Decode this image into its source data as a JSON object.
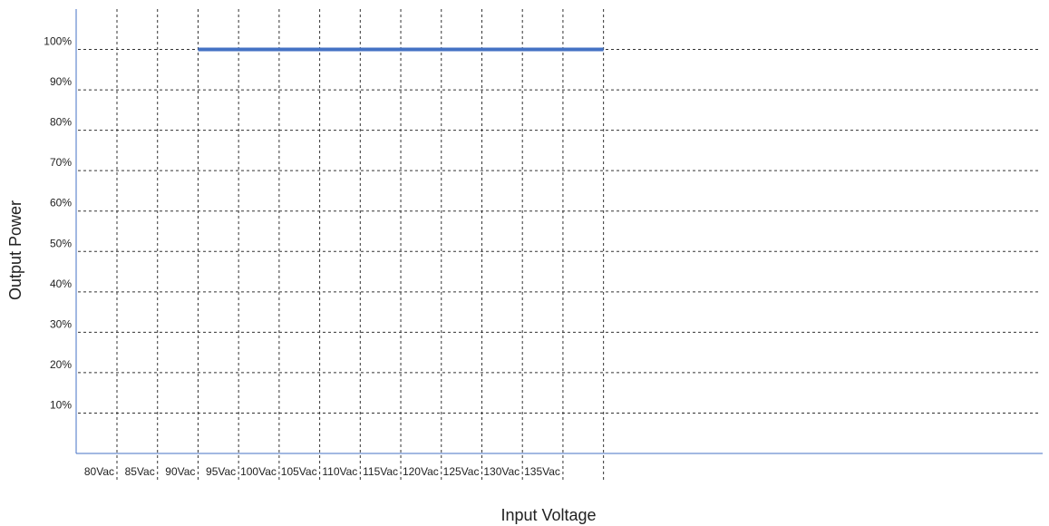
{
  "chart_data": {
    "type": "line",
    "xlabel": "Input Voltage",
    "ylabel": "Output Power",
    "x_tick_labels": [
      "80Vac",
      "85Vac",
      "90Vac",
      "95Vac",
      "100Vac",
      "105Vac",
      "110Vac",
      "115Vac",
      "120Vac",
      "125Vac",
      "130Vac",
      "135Vac"
    ],
    "y_tick_labels": [
      "10%",
      "20%",
      "30%",
      "40%",
      "50%",
      "60%",
      "70%",
      "80%",
      "90%",
      "100%"
    ],
    "y_tick_values": [
      10,
      20,
      30,
      40,
      50,
      60,
      70,
      80,
      90,
      100
    ],
    "xlim": [
      77.5,
      140
    ],
    "ylim": [
      0,
      110
    ],
    "grid": true,
    "grid_style": "dashed",
    "series": [
      {
        "color": "#4472c4",
        "x": [
          90,
          140
        ],
        "y": [
          100,
          100
        ]
      }
    ]
  }
}
